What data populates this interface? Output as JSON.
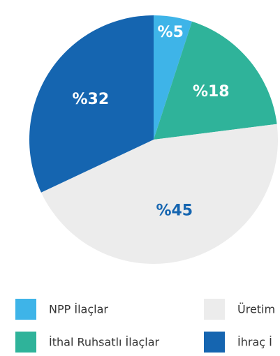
{
  "chart_data": {
    "type": "pie",
    "categories": [
      "NPP İlaçlar",
      "İthal Ruhsatlı İlaçlar",
      "Üretim",
      "İhraç İ"
    ],
    "values": [
      5,
      18,
      45,
      32
    ],
    "value_labels": [
      "%5",
      "%18",
      "%45",
      "%32"
    ],
    "colors": [
      "#3eb4e8",
      "#2fb39a",
      "#ececec",
      "#1565b0"
    ]
  }
}
